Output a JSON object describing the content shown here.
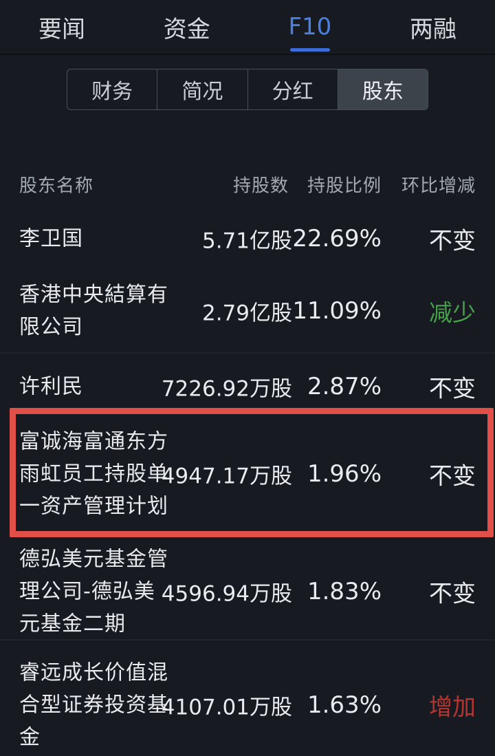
{
  "topnav": {
    "tabs": [
      {
        "label": "要闻",
        "active": false
      },
      {
        "label": "资金",
        "active": false
      },
      {
        "label": "F10",
        "active": true
      },
      {
        "label": "两融",
        "active": false
      }
    ]
  },
  "subnav": {
    "tabs": [
      {
        "label": "财务",
        "selected": false
      },
      {
        "label": "简况",
        "selected": false
      },
      {
        "label": "分红",
        "selected": false
      },
      {
        "label": "股东",
        "selected": true
      }
    ]
  },
  "table": {
    "columns": [
      "股东名称",
      "持股数",
      "持股比例",
      "环比增减"
    ],
    "rows": [
      {
        "name_lines": [
          "李卫国"
        ],
        "shares": "5.71亿股",
        "ratio": "22.69%",
        "change": "不变",
        "direction": "unchanged",
        "highlighted": false
      },
      {
        "name_lines": [
          "香港中央結算有",
          "限公司"
        ],
        "shares": "2.79亿股",
        "ratio": "11.09%",
        "change": "减少",
        "direction": "decrease",
        "highlighted": false
      },
      {
        "name_lines": [
          "许利民"
        ],
        "shares": "7226.92万股",
        "ratio": "2.87%",
        "change": "不变",
        "direction": "unchanged",
        "highlighted": false
      },
      {
        "name_lines": [
          "富诚海富通东方",
          "雨虹员工持股单",
          "一资产管理计划"
        ],
        "shares": "4947.17万股",
        "ratio": "1.96%",
        "change": "不变",
        "direction": "unchanged",
        "highlighted": true
      },
      {
        "name_lines": [
          "德弘美元基金管",
          "理公司-德弘美",
          "元基金二期"
        ],
        "shares": "4596.94万股",
        "ratio": "1.83%",
        "change": "不变",
        "direction": "unchanged",
        "highlighted": false
      },
      {
        "name_lines": [
          "睿远成长价值混",
          "合型证券投资基",
          "金"
        ],
        "shares": "4107.01万股",
        "ratio": "1.63%",
        "change": "增加",
        "direction": "increase",
        "highlighted": false
      }
    ]
  },
  "colors": {
    "background": "#171a20",
    "text_primary": "#e9ebee",
    "text_secondary": "#a2a9b3",
    "accent_blue": "#4a80e0",
    "underline_blue": "#3d6ed8",
    "decrease_green": "#45a049",
    "increase_red": "#b73530",
    "highlight_border": "#e05048",
    "selected_segment_bg": "#3d434b"
  }
}
